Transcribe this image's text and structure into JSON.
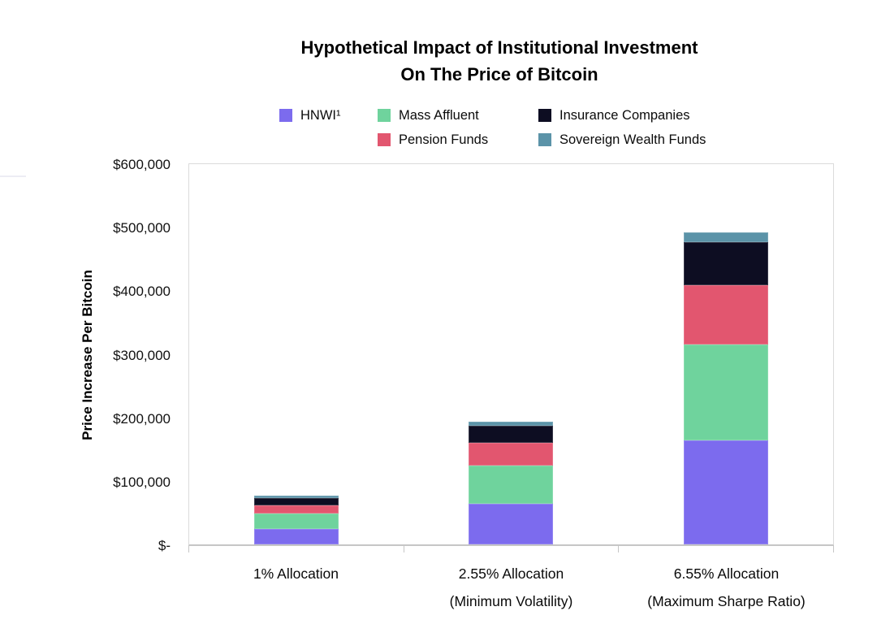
{
  "title": {
    "line1": "Hypothetical Impact of Institutional Investment",
    "line2": "On The Price of Bitcoin"
  },
  "chart_data": {
    "type": "bar",
    "stacked": true,
    "title": "Hypothetical Impact of Institutional Investment On The Price of Bitcoin",
    "xlabel": "",
    "ylabel": "Price Increase Per Bitcoin",
    "ylim": [
      0,
      600000
    ],
    "y_tick_interval": 100000,
    "y_tick_labels": [
      "$600,000",
      "$500,000",
      "$400,000",
      "$300,000",
      "$200,000",
      "$100,000",
      "$-"
    ],
    "grid": false,
    "legend_position": "top",
    "categories": [
      {
        "line1": "1% Allocation",
        "line2": ""
      },
      {
        "line1": "2.55% Allocation",
        "line2": "(Minimum Volatility)"
      },
      {
        "line1": "6.55% Allocation",
        "line2": "(Maximum Sharpe Ratio)"
      }
    ],
    "series": [
      {
        "name": "HNWI¹",
        "color": "#7C6BEE",
        "values": [
          25000,
          64000,
          164000
        ]
      },
      {
        "name": "Mass Affluent",
        "color": "#6FD39D",
        "values": [
          24000,
          60000,
          152000
        ]
      },
      {
        "name": "Pension Funds",
        "color": "#E2566F",
        "values": [
          13000,
          36000,
          93000
        ]
      },
      {
        "name": "Insurance Companies",
        "color": "#0D0D22",
        "values": [
          11000,
          27000,
          68000
        ]
      },
      {
        "name": "Sovereign Wealth Funds",
        "color": "#5B93A8",
        "values": [
          3500,
          6500,
          16000
        ]
      }
    ],
    "totals": [
      76500,
      193500,
      493000
    ],
    "legend_columns": [
      [
        0
      ],
      [
        1,
        2
      ],
      [
        3,
        4
      ]
    ]
  },
  "colors": {
    "axis_line": "#C6C6C6",
    "plot_border": "#DBDBDB",
    "text": "#0A0A0A"
  }
}
